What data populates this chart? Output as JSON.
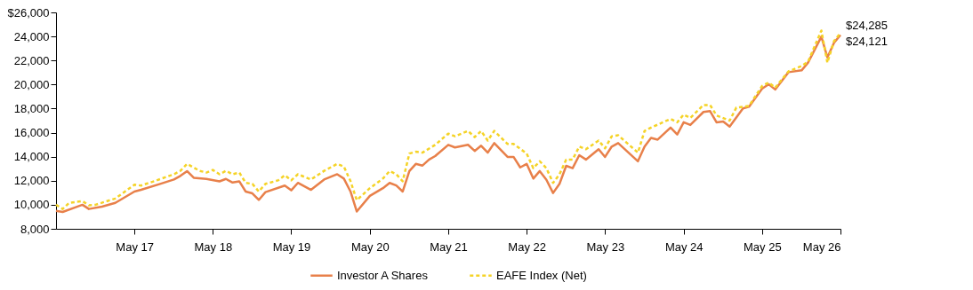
{
  "chart_data": {
    "type": "line",
    "xlim": [
      "2016-05",
      "2026-05"
    ],
    "xticks": [
      {
        "value": "2017-05",
        "label": "May 17"
      },
      {
        "value": "2018-05",
        "label": "May 18"
      },
      {
        "value": "2019-05",
        "label": "May 19"
      },
      {
        "value": "2020-05",
        "label": "May 20"
      },
      {
        "value": "2021-05",
        "label": "May 21"
      },
      {
        "value": "2022-05",
        "label": "May 22"
      },
      {
        "value": "2023-05",
        "label": "May 23"
      },
      {
        "value": "2024-05",
        "label": "May 24"
      },
      {
        "value": "2025-05",
        "label": "May 25"
      },
      {
        "value": "2026-05",
        "label": "May 26"
      }
    ],
    "ylim": [
      8000,
      26000
    ],
    "yticks": [
      {
        "value": 8000,
        "label": "8,000"
      },
      {
        "value": 10000,
        "label": "10,000"
      },
      {
        "value": 12000,
        "label": "12,000"
      },
      {
        "value": 14000,
        "label": "14,000"
      },
      {
        "value": 16000,
        "label": "16,000"
      },
      {
        "value": 18000,
        "label": "18,000"
      },
      {
        "value": 20000,
        "label": "20,000"
      },
      {
        "value": 22000,
        "label": "22,000"
      },
      {
        "value": 24000,
        "label": "24,000"
      },
      {
        "value": 26000,
        "label": "$26,000"
      }
    ],
    "grid": false,
    "legend": "bottom",
    "series": [
      {
        "name": "Investor A Shares",
        "color": "#e8804a",
        "line_style": "solid",
        "x": [
          "2016-05",
          "2016-06",
          "2016-08",
          "2016-09",
          "2016-10",
          "2016-12",
          "2017-02",
          "2017-05",
          "2017-06",
          "2017-09",
          "2017-11",
          "2017-12",
          "2018-01",
          "2018-02",
          "2018-04",
          "2018-06",
          "2018-07",
          "2018-08",
          "2018-09",
          "2018-10",
          "2018-11",
          "2018-12",
          "2019-01",
          "2019-04",
          "2019-05",
          "2019-06",
          "2019-08",
          "2019-10",
          "2019-12",
          "2020-01",
          "2020-02",
          "2020-03",
          "2020-05",
          "2020-07",
          "2020-08",
          "2020-09",
          "2020-10",
          "2020-11",
          "2020-12",
          "2021-01",
          "2021-02",
          "2021-03",
          "2021-05",
          "2021-06",
          "2021-08",
          "2021-09",
          "2021-10",
          "2021-11",
          "2021-12",
          "2022-02",
          "2022-03",
          "2022-04",
          "2022-05",
          "2022-06",
          "2022-07",
          "2022-08",
          "2022-09",
          "2022-10",
          "2022-11",
          "2022-12",
          "2023-01",
          "2023-02",
          "2023-04",
          "2023-05",
          "2023-06",
          "2023-07",
          "2023-10",
          "2023-11",
          "2023-12",
          "2024-01",
          "2024-03",
          "2024-04",
          "2024-05",
          "2024-06",
          "2024-08",
          "2024-09",
          "2024-10",
          "2024-11",
          "2024-12",
          "2025-02",
          "2025-03",
          "2025-05",
          "2025-06",
          "2025-07",
          "2025-09",
          "2025-11",
          "2025-12",
          "2026-02",
          "2026-03",
          "2026-04",
          "2026-05"
        ],
        "values": [
          9500,
          9400,
          9800,
          10000,
          9650,
          9850,
          10160,
          11100,
          11250,
          11750,
          12100,
          12400,
          12800,
          12250,
          12150,
          11950,
          12150,
          11850,
          11950,
          11100,
          10950,
          10400,
          11050,
          11600,
          11200,
          11820,
          11240,
          12100,
          12540,
          12180,
          11100,
          9440,
          10740,
          11380,
          11820,
          11600,
          11100,
          12800,
          13400,
          13260,
          13760,
          14050,
          14980,
          14770,
          14990,
          14480,
          14910,
          14340,
          15130,
          13980,
          13980,
          13110,
          13400,
          12180,
          12800,
          12080,
          10980,
          11740,
          13240,
          13040,
          14120,
          13760,
          14620,
          13980,
          14840,
          15130,
          13620,
          14840,
          15560,
          15420,
          16420,
          15850,
          16860,
          16640,
          17720,
          17790,
          16860,
          16930,
          16500,
          18010,
          18150,
          19660,
          20020,
          19590,
          21030,
          21180,
          21820,
          23980,
          22260,
          23480,
          24121
        ]
      },
      {
        "name": "EAFE Index (Net)",
        "color": "#f5d327",
        "line_style": "dashed",
        "x": [
          "2016-05",
          "2016-06",
          "2016-07",
          "2016-09",
          "2016-10",
          "2016-11",
          "2017-02",
          "2017-05",
          "2017-06",
          "2017-08",
          "2017-11",
          "2017-12",
          "2018-01",
          "2018-03",
          "2018-04",
          "2018-05",
          "2018-06",
          "2018-07",
          "2018-08",
          "2018-09",
          "2018-10",
          "2018-11",
          "2018-12",
          "2019-01",
          "2019-03",
          "2019-04",
          "2019-05",
          "2019-06",
          "2019-08",
          "2019-10",
          "2019-12",
          "2020-01",
          "2020-02",
          "2020-03",
          "2020-05",
          "2020-07",
          "2020-08",
          "2020-09",
          "2020-10",
          "2020-11",
          "2020-12",
          "2021-01",
          "2021-03",
          "2021-05",
          "2021-06",
          "2021-08",
          "2021-09",
          "2021-10",
          "2021-11",
          "2021-12",
          "2022-02",
          "2022-03",
          "2022-05",
          "2022-06",
          "2022-07",
          "2022-08",
          "2022-09",
          "2022-10",
          "2022-11",
          "2022-12",
          "2023-01",
          "2023-02",
          "2023-04",
          "2023-05",
          "2023-06",
          "2023-07",
          "2023-10",
          "2023-11",
          "2023-12",
          "2024-03",
          "2024-04",
          "2024-05",
          "2024-06",
          "2024-08",
          "2024-09",
          "2024-10",
          "2024-12",
          "2025-01",
          "2025-03",
          "2025-05",
          "2025-06",
          "2025-07",
          "2025-09",
          "2025-11",
          "2025-12",
          "2026-02",
          "2026-03",
          "2026-04",
          "2026-05"
        ],
        "values": [
          10000,
          9650,
          10160,
          10300,
          9950,
          10000,
          10520,
          11670,
          11600,
          11960,
          12540,
          12820,
          13400,
          12820,
          12680,
          12900,
          12540,
          12820,
          12540,
          12680,
          11820,
          11740,
          11100,
          11740,
          12030,
          12460,
          12030,
          12540,
          12100,
          12820,
          13400,
          13180,
          11960,
          10380,
          11380,
          12180,
          12800,
          12540,
          11960,
          14260,
          14410,
          14340,
          14980,
          15920,
          15700,
          16140,
          15630,
          16140,
          15340,
          16140,
          15060,
          15060,
          14260,
          13040,
          13620,
          13040,
          11820,
          12540,
          13760,
          13760,
          14840,
          14620,
          15340,
          14700,
          15700,
          15780,
          14340,
          16140,
          16420,
          17140,
          16860,
          17500,
          17220,
          18300,
          18300,
          17430,
          17000,
          18080,
          18220,
          19880,
          20170,
          19740,
          21100,
          21540,
          21900,
          24490,
          21820,
          23620,
          24285
        ]
      }
    ],
    "annotations": [
      {
        "text": "$24,285",
        "x": "2026-05",
        "y": 24285
      },
      {
        "text": "$24,121",
        "x": "2026-05",
        "y": 24121
      }
    ]
  }
}
